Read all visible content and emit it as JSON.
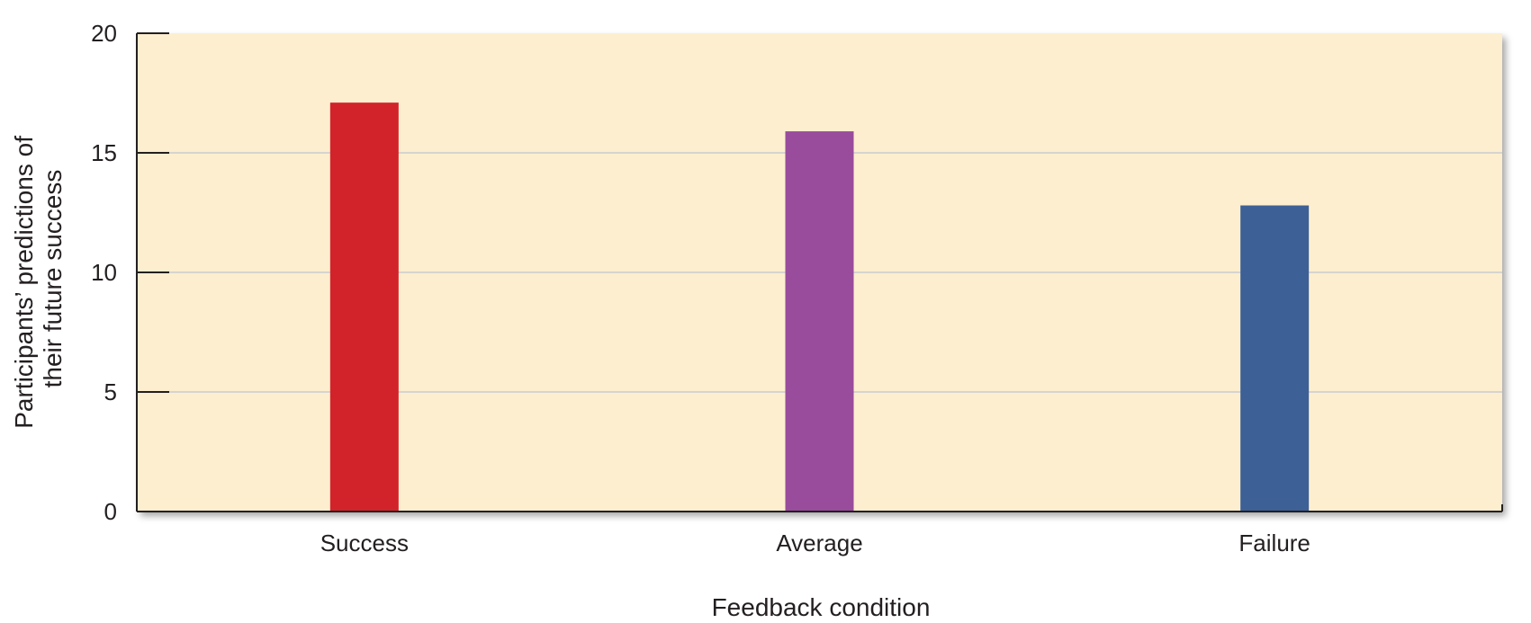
{
  "chart_data": {
    "type": "bar",
    "categories": [
      "Success",
      "Average",
      "Failure"
    ],
    "values": [
      17.1,
      15.9,
      12.8
    ],
    "bar_colors": [
      "#d2232a",
      "#994c9c",
      "#3d6096"
    ],
    "xlabel": "Feedback condition",
    "ylabel_lines": [
      "Participants’ predictions of",
      "their future success"
    ],
    "ylim": [
      0,
      20
    ],
    "yticks": [
      "0",
      "5",
      "10",
      "15",
      "20"
    ],
    "grid": true,
    "plot_background": "#fdeecf",
    "grid_color": "#c9ccd1"
  }
}
